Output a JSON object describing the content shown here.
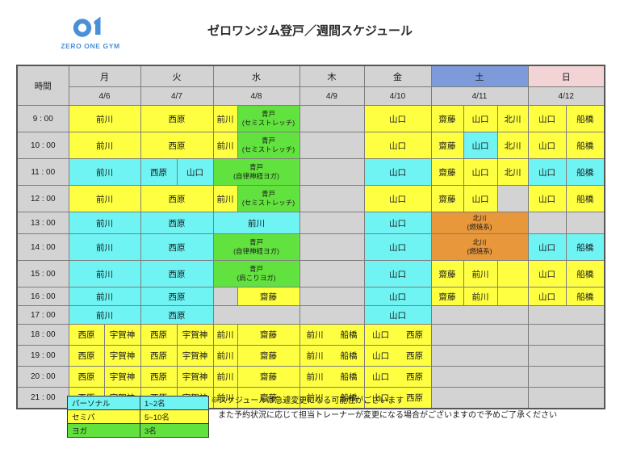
{
  "logo": {
    "number": "01",
    "text": "ZERO ONE GYM"
  },
  "title": "ゼロワンジム登戸／週間スケジュール",
  "colors": {
    "personal": "#6FF3F3",
    "semipa": "#FFFF42",
    "yoga": "#62E23E",
    "burn": "#E8973B",
    "empty": "#D3D3D3",
    "header_gray": "#D3D3D3",
    "saturday_header": "#7D9BDB",
    "sunday_header": "#F2D4D6",
    "logo_blue": "#4A90D9"
  },
  "table": {
    "time_label": "時間",
    "days": [
      {
        "label": "月",
        "date": "4/6",
        "span": 2,
        "bg": "#D3D3D3"
      },
      {
        "label": "火",
        "date": "4/7",
        "span": 2,
        "bg": "#D3D3D3"
      },
      {
        "label": "水",
        "date": "4/8",
        "span": 2,
        "bg": "#D3D3D3"
      },
      {
        "label": "木",
        "date": "4/9",
        "span": 1,
        "bg": "#D3D3D3"
      },
      {
        "label": "金",
        "date": "4/10",
        "span": 1,
        "bg": "#D3D3D3"
      },
      {
        "label": "土",
        "date": "4/11",
        "span": 3,
        "bg": "#7D9BDB"
      },
      {
        "label": "日",
        "date": "4/12",
        "span": 2,
        "bg": "#F2D4D6"
      }
    ],
    "rows": [
      {
        "time": "9 : 00",
        "cells": [
          {
            "text": "前川",
            "type": "semipa",
            "span": 2
          },
          {
            "text": "西原",
            "type": "semipa",
            "span": 2
          },
          {
            "text": "前川",
            "type": "semipa"
          },
          {
            "text": "青戸\n(セミストレッチ)",
            "type": "yoga"
          },
          {
            "text": "",
            "type": "empty"
          },
          {
            "text": "山口",
            "type": "semipa"
          },
          {
            "text": "齋藤",
            "type": "semipa"
          },
          {
            "text": "山口",
            "type": "semipa"
          },
          {
            "text": "北川",
            "type": "semipa"
          },
          {
            "text": "山口",
            "type": "semipa"
          },
          {
            "text": "船橋",
            "type": "semipa"
          }
        ]
      },
      {
        "time": "10 : 00",
        "cells": [
          {
            "text": "前川",
            "type": "semipa",
            "span": 2
          },
          {
            "text": "西原",
            "type": "semipa",
            "span": 2
          },
          {
            "text": "前川",
            "type": "semipa"
          },
          {
            "text": "青戸\n(セミストレッチ)",
            "type": "yoga"
          },
          {
            "text": "",
            "type": "empty"
          },
          {
            "text": "山口",
            "type": "semipa"
          },
          {
            "text": "齋藤",
            "type": "semipa"
          },
          {
            "text": "山口",
            "type": "personal"
          },
          {
            "text": "北川",
            "type": "semipa"
          },
          {
            "text": "山口",
            "type": "semipa"
          },
          {
            "text": "船橋",
            "type": "semipa"
          }
        ]
      },
      {
        "time": "11 : 00",
        "cells": [
          {
            "text": "前川",
            "type": "personal",
            "span": 2
          },
          {
            "text": "西原",
            "type": "personal"
          },
          {
            "text": "山口",
            "type": "personal"
          },
          {
            "text": "青戸\n(自律神経ヨガ)",
            "type": "yoga",
            "span": 2
          },
          {
            "text": "",
            "type": "empty"
          },
          {
            "text": "山口",
            "type": "personal"
          },
          {
            "text": "齋藤",
            "type": "semipa"
          },
          {
            "text": "山口",
            "type": "semipa"
          },
          {
            "text": "北川",
            "type": "semipa"
          },
          {
            "text": "山口",
            "type": "personal"
          },
          {
            "text": "船橋",
            "type": "personal"
          }
        ]
      },
      {
        "time": "12 : 00",
        "cells": [
          {
            "text": "前川",
            "type": "semipa",
            "span": 2
          },
          {
            "text": "西原",
            "type": "semipa",
            "span": 2
          },
          {
            "text": "前川",
            "type": "semipa"
          },
          {
            "text": "青戸\n(セミストレッチ)",
            "type": "yoga"
          },
          {
            "text": "",
            "type": "empty"
          },
          {
            "text": "山口",
            "type": "semipa"
          },
          {
            "text": "齋藤",
            "type": "semipa"
          },
          {
            "text": "山口",
            "type": "semipa"
          },
          {
            "text": "",
            "type": "empty"
          },
          {
            "text": "山口",
            "type": "semipa"
          },
          {
            "text": "船橋",
            "type": "semipa"
          }
        ]
      },
      {
        "time": "13 : 00",
        "cells": [
          {
            "text": "前川",
            "type": "personal",
            "span": 2
          },
          {
            "text": "西原",
            "type": "personal",
            "span": 2
          },
          {
            "text": "前川",
            "type": "personal",
            "span": 2
          },
          {
            "text": "",
            "type": "empty"
          },
          {
            "text": "山口",
            "type": "personal"
          },
          {
            "text": "北川\n(燃焼系)",
            "type": "burn",
            "span": 3
          },
          {
            "text": "",
            "type": "empty"
          },
          {
            "text": "",
            "type": "empty"
          }
        ]
      },
      {
        "time": "14 : 00",
        "cells": [
          {
            "text": "前川",
            "type": "personal",
            "span": 2
          },
          {
            "text": "西原",
            "type": "personal",
            "span": 2
          },
          {
            "text": "青戸\n(自律神経ヨガ)",
            "type": "yoga",
            "span": 2
          },
          {
            "text": "",
            "type": "empty"
          },
          {
            "text": "山口",
            "type": "personal"
          },
          {
            "text": "北川\n(燃焼系)",
            "type": "burn",
            "span": 3
          },
          {
            "text": "山口",
            "type": "personal"
          },
          {
            "text": "船橋",
            "type": "personal"
          }
        ]
      },
      {
        "time": "15 : 00",
        "cells": [
          {
            "text": "前川",
            "type": "personal",
            "span": 2
          },
          {
            "text": "西原",
            "type": "personal",
            "span": 2
          },
          {
            "text": "青戸\n(肩こりヨガ)",
            "type": "yoga",
            "span": 2
          },
          {
            "text": "",
            "type": "empty"
          },
          {
            "text": "山口",
            "type": "personal"
          },
          {
            "text": "齋藤",
            "type": "semipa"
          },
          {
            "text": "前川",
            "type": "semipa"
          },
          {
            "text": "",
            "type": "semipa"
          },
          {
            "text": "山口",
            "type": "semipa"
          },
          {
            "text": "船橋",
            "type": "semipa"
          }
        ]
      },
      {
        "time": "16 : 00",
        "cells": [
          {
            "text": "前川",
            "type": "personal",
            "span": 2
          },
          {
            "text": "西原",
            "type": "personal",
            "span": 2
          },
          {
            "text": "",
            "type": "empty"
          },
          {
            "text": "齋藤",
            "type": "semipa"
          },
          {
            "text": "",
            "type": "empty"
          },
          {
            "text": "山口",
            "type": "personal"
          },
          {
            "text": "齋藤",
            "type": "semipa"
          },
          {
            "text": "前川",
            "type": "semipa"
          },
          {
            "text": "",
            "type": "semipa"
          },
          {
            "text": "山口",
            "type": "semipa"
          },
          {
            "text": "船橋",
            "type": "semipa"
          }
        ]
      },
      {
        "time": "17 : 00",
        "cells": [
          {
            "text": "前川",
            "type": "personal",
            "span": 2
          },
          {
            "text": "西原",
            "type": "personal",
            "span": 2
          },
          {
            "text": "",
            "type": "empty",
            "span": 2
          },
          {
            "text": "",
            "type": "empty"
          },
          {
            "text": "山口",
            "type": "personal"
          },
          {
            "text": "",
            "type": "empty",
            "span": 3
          },
          {
            "text": "",
            "type": "empty",
            "span": 2
          }
        ]
      },
      {
        "time": "18 : 00",
        "cells": [
          {
            "text": "西原",
            "type": "semipa"
          },
          {
            "text": "宇賀神",
            "type": "semipa"
          },
          {
            "text": "西原",
            "type": "semipa"
          },
          {
            "text": "宇賀神",
            "type": "semipa"
          },
          {
            "text": "前川",
            "type": "semipa"
          },
          {
            "text": "齋藤",
            "type": "semipa"
          },
          {
            "text": "前川　　船橋",
            "type": "semipa"
          },
          {
            "text": "山口　　西原",
            "type": "semipa"
          },
          {
            "text": "",
            "type": "empty",
            "span": 3
          },
          {
            "text": "",
            "type": "empty",
            "span": 2
          }
        ]
      },
      {
        "time": "19 : 00",
        "cells": [
          {
            "text": "西原",
            "type": "semipa"
          },
          {
            "text": "宇賀神",
            "type": "semipa"
          },
          {
            "text": "西原",
            "type": "semipa"
          },
          {
            "text": "宇賀神",
            "type": "semipa"
          },
          {
            "text": "前川",
            "type": "semipa"
          },
          {
            "text": "齋藤",
            "type": "semipa"
          },
          {
            "text": "前川　　船橋",
            "type": "semipa"
          },
          {
            "text": "山口　　西原",
            "type": "semipa"
          },
          {
            "text": "",
            "type": "empty",
            "span": 3
          },
          {
            "text": "",
            "type": "empty",
            "span": 2
          }
        ]
      },
      {
        "time": "20 : 00",
        "cells": [
          {
            "text": "西原",
            "type": "semipa"
          },
          {
            "text": "宇賀神",
            "type": "semipa"
          },
          {
            "text": "西原",
            "type": "semipa"
          },
          {
            "text": "宇賀神",
            "type": "semipa"
          },
          {
            "text": "前川",
            "type": "semipa"
          },
          {
            "text": "齋藤",
            "type": "semipa"
          },
          {
            "text": "前川　　船橋",
            "type": "semipa"
          },
          {
            "text": "山口　　西原",
            "type": "semipa"
          },
          {
            "text": "",
            "type": "empty",
            "span": 3
          },
          {
            "text": "",
            "type": "empty",
            "span": 2
          }
        ]
      },
      {
        "time": "21 : 00",
        "cells": [
          {
            "text": "西原",
            "type": "semipa"
          },
          {
            "text": "宇賀神",
            "type": "semipa"
          },
          {
            "text": "西原",
            "type": "semipa"
          },
          {
            "text": "宇賀神",
            "type": "semipa"
          },
          {
            "text": "前川",
            "type": "semipa"
          },
          {
            "text": "齋藤",
            "type": "semipa"
          },
          {
            "text": "前川　　船橋",
            "type": "semipa"
          },
          {
            "text": "山口　　西原",
            "type": "semipa"
          },
          {
            "text": "",
            "type": "empty",
            "span": 3
          },
          {
            "text": "",
            "type": "empty",
            "span": 2
          }
        ]
      }
    ]
  },
  "legend": {
    "items": [
      {
        "label": "パーソナル",
        "capacity": "1~2名",
        "type": "personal"
      },
      {
        "label": "セミパ",
        "capacity": "5~10名",
        "type": "semipa"
      },
      {
        "label": "ヨガ",
        "capacity": "3名",
        "type": "yoga"
      }
    ]
  },
  "notes": [
    "※スケジュールは急遽変更になる可能性がございます",
    "また予約状況に応じて担当トレーナーが変更になる場合がございますので予めご了承ください"
  ]
}
